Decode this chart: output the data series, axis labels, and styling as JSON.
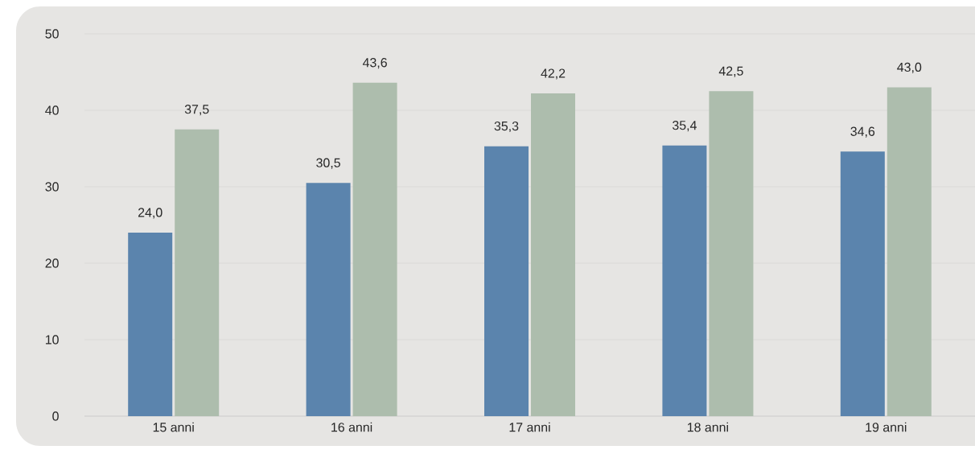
{
  "chart_data": {
    "type": "bar",
    "categories": [
      "15 anni",
      "16 anni",
      "17 anni",
      "18 anni",
      "19 anni"
    ],
    "series": [
      {
        "color": "#5b84ad",
        "values": [
          24.0,
          30.5,
          35.3,
          35.4,
          34.6
        ],
        "value_labels": [
          "24,0",
          "30,5",
          "35,3",
          "35,4",
          "34,6"
        ]
      },
      {
        "color": "#adbdad",
        "values": [
          37.5,
          43.6,
          42.2,
          42.5,
          43.0
        ],
        "value_labels": [
          "37,5",
          "43,6",
          "42,2",
          "42,5",
          "43,0"
        ]
      }
    ],
    "ylim": [
      0,
      50
    ],
    "yticks": [
      0,
      10,
      20,
      30,
      40,
      50
    ],
    "grid": "y"
  }
}
